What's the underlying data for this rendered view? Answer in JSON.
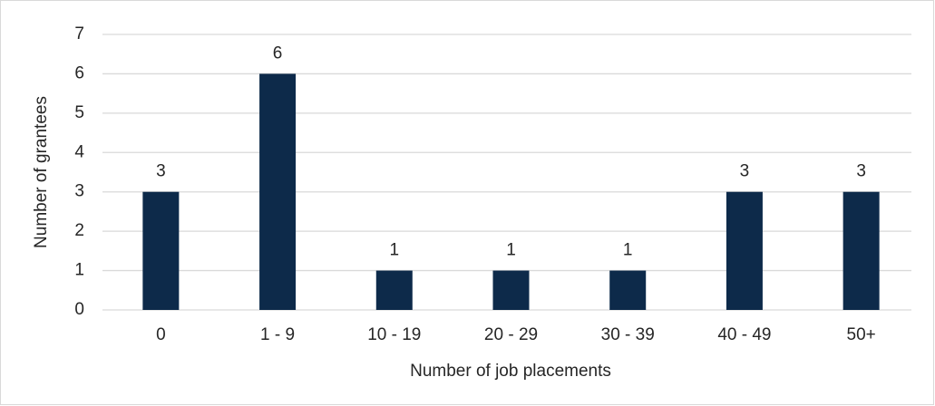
{
  "chart_data": {
    "type": "bar",
    "x_label": "Number of job placements",
    "y_label": "Number of grantees",
    "categories": [
      "0",
      "1 - 9",
      "10 - 19",
      "20 - 29",
      "30 - 39",
      "40 - 49",
      "50+"
    ],
    "values": [
      3,
      6,
      1,
      1,
      1,
      3,
      3
    ],
    "color": "#0d2a4a",
    "ylim": [
      0,
      7
    ],
    "yticks": [
      0,
      1,
      2,
      3,
      4,
      5,
      6,
      7
    ],
    "grid": true,
    "data_labels": true
  }
}
